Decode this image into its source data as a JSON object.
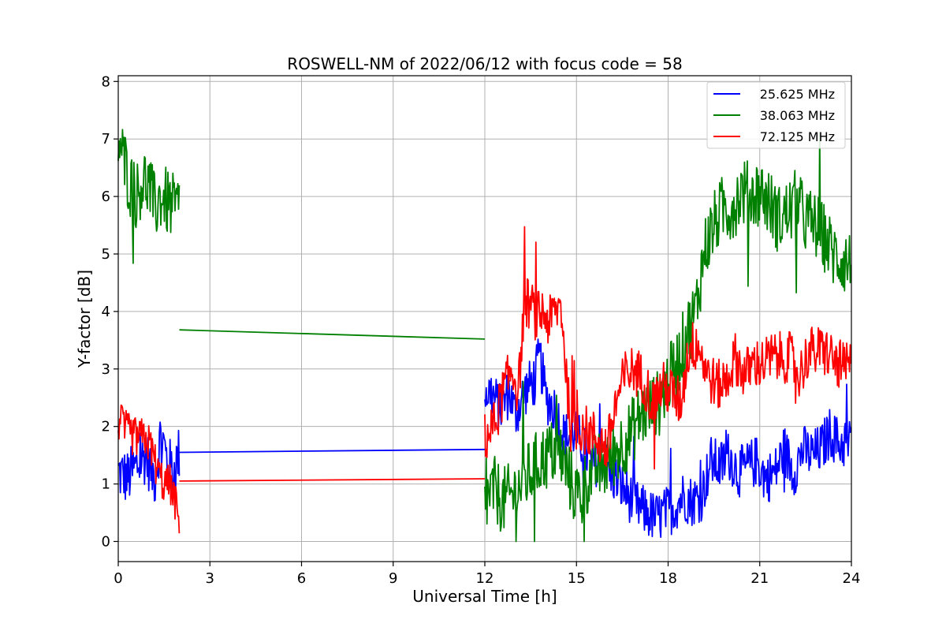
{
  "chart_data": {
    "type": "line",
    "title": "ROSWELL-NM of 2022/06/12 with focus code = 58",
    "xlabel": "Universal Time [h]",
    "ylabel": "Y-factor [dB]",
    "xlim": [
      0,
      24
    ],
    "ylim": [
      -0.35,
      8.1
    ],
    "xticks": [
      0,
      3,
      6,
      9,
      12,
      15,
      18,
      21,
      24
    ],
    "yticks": [
      0,
      1,
      2,
      3,
      4,
      5,
      6,
      7,
      8
    ],
    "xtick_labels": [
      "0",
      "3",
      "6",
      "9",
      "12",
      "15",
      "18",
      "21",
      "24"
    ],
    "ytick_labels": [
      "0",
      "1",
      "2",
      "3",
      "4",
      "5",
      "6",
      "7",
      "8"
    ],
    "grid": true,
    "legend_position": "top-right",
    "series": [
      {
        "name": "25.625 MHz",
        "color": "#0000ff",
        "segments": [
          {
            "x": [
              0,
              0.3,
              0.6,
              0.9,
              1.2,
              1.4,
              1.6,
              1.8,
              2.0
            ],
            "y": [
              1.2,
              1.1,
              1.3,
              1.5,
              1.1,
              1.9,
              1.4,
              1.2,
              1.55
            ],
            "noise": 0.5
          },
          {
            "x": [
              2.0,
              12.0
            ],
            "y": [
              1.55,
              1.6
            ],
            "noise": 0
          },
          {
            "x": [
              12.0,
              12.2,
              12.5,
              12.8,
              13.0,
              13.3,
              13.6,
              13.8,
              14.0,
              14.3,
              14.6,
              14.9,
              15.2,
              15.5,
              15.8,
              16.1,
              16.4,
              16.7,
              17.0,
              17.3,
              17.6,
              17.9,
              18.2,
              18.5,
              18.8,
              19.1,
              19.4,
              19.7,
              20.0,
              20.3,
              20.6,
              20.9,
              21.2,
              21.5,
              21.8,
              22.1,
              22.4,
              22.7,
              23.0,
              23.3,
              23.6,
              24.0
            ],
            "y": [
              2.6,
              2.6,
              2.3,
              2.6,
              2.2,
              2.6,
              2.8,
              3.2,
              2.5,
              2.3,
              1.8,
              1.9,
              1.7,
              1.3,
              1.5,
              1.2,
              1.0,
              0.8,
              0.6,
              0.5,
              0.4,
              0.5,
              0.6,
              0.8,
              0.7,
              0.8,
              1.4,
              1.3,
              1.5,
              1.2,
              1.3,
              1.4,
              1.1,
              1.2,
              1.6,
              1.2,
              1.6,
              1.5,
              1.6,
              1.9,
              1.7,
              1.7
            ],
            "noise": 0.45
          }
        ]
      },
      {
        "name": "38.063 MHz",
        "color": "#008000",
        "segments": [
          {
            "x": [
              0,
              0.2,
              0.4,
              0.6,
              0.8,
              1.0,
              1.2,
              1.4,
              1.6,
              1.8,
              2.0
            ],
            "y": [
              7.0,
              6.6,
              6.2,
              6.0,
              6.3,
              6.2,
              5.8,
              6.0,
              5.9,
              5.8,
              5.8
            ],
            "noise": 0.6
          },
          {
            "x": [
              2.0,
              12.0
            ],
            "y": [
              3.68,
              3.52
            ],
            "noise": 0
          },
          {
            "x": [
              12.0,
              12.3,
              12.6,
              12.9,
              13.2,
              13.5,
              13.8,
              14.1,
              14.4,
              14.7,
              15.0,
              15.3,
              15.6,
              15.9,
              16.2,
              16.5,
              16.8,
              17.1,
              17.4,
              17.7,
              18.0,
              18.3,
              18.6,
              18.9,
              19.2,
              19.5,
              19.8,
              20.1,
              20.4,
              20.7,
              21.0,
              21.3,
              21.6,
              21.9,
              22.2,
              22.5,
              22.8,
              23.1,
              23.4,
              23.7,
              24.0
            ],
            "y": [
              0.7,
              0.9,
              0.7,
              0.8,
              1.0,
              1.2,
              1.4,
              1.5,
              1.6,
              1.2,
              0.8,
              1.0,
              1.3,
              1.3,
              1.5,
              1.7,
              1.9,
              2.2,
              2.3,
              2.4,
              2.8,
              3.1,
              3.6,
              4.0,
              5.1,
              5.5,
              5.8,
              5.8,
              6.1,
              6.0,
              6.1,
              5.9,
              5.6,
              5.7,
              5.9,
              5.6,
              5.5,
              5.3,
              5.0,
              4.9,
              4.8
            ],
            "noise": 0.6
          }
        ]
      },
      {
        "name": "72.125 MHz",
        "color": "#ff0000",
        "segments": [
          {
            "x": [
              0,
              0.3,
              0.6,
              0.9,
              1.1,
              1.3,
              1.5,
              1.7,
              1.9,
              2.0
            ],
            "y": [
              2.1,
              1.9,
              1.8,
              1.8,
              1.6,
              1.2,
              1.0,
              1.0,
              0.6,
              0.3
            ],
            "noise": 0.35
          },
          {
            "x": [
              2.0,
              12.0
            ],
            "y": [
              1.05,
              1.09
            ],
            "noise": 0
          },
          {
            "x": [
              12.0,
              12.3,
              12.6,
              12.9,
              13.1,
              13.3,
              13.5,
              13.7,
              13.9,
              14.1,
              14.3,
              14.5,
              14.8,
              15.1,
              15.4,
              15.7,
              16.0,
              16.3,
              16.6,
              16.9,
              17.2,
              17.5,
              17.8,
              18.1,
              18.4,
              18.7,
              19.0,
              19.3,
              19.6,
              19.9,
              20.2,
              20.5,
              20.8,
              21.1,
              21.4,
              21.7,
              22.0,
              22.3,
              22.6,
              22.9,
              23.2,
              23.5,
              23.8,
              24.0
            ],
            "y": [
              1.8,
              2.0,
              2.6,
              3.0,
              2.6,
              4.2,
              4.1,
              3.9,
              4.0,
              3.8,
              4.0,
              4.1,
              2.0,
              2.0,
              1.9,
              1.8,
              1.6,
              2.4,
              2.9,
              3.0,
              2.8,
              2.4,
              2.7,
              2.6,
              2.4,
              3.4,
              3.4,
              2.9,
              2.7,
              2.8,
              3.2,
              2.9,
              3.1,
              3.1,
              3.2,
              3.2,
              3.2,
              2.9,
              3.3,
              3.3,
              3.3,
              3.1,
              3.0,
              3.1
            ],
            "noise": 0.45
          }
        ]
      }
    ]
  }
}
